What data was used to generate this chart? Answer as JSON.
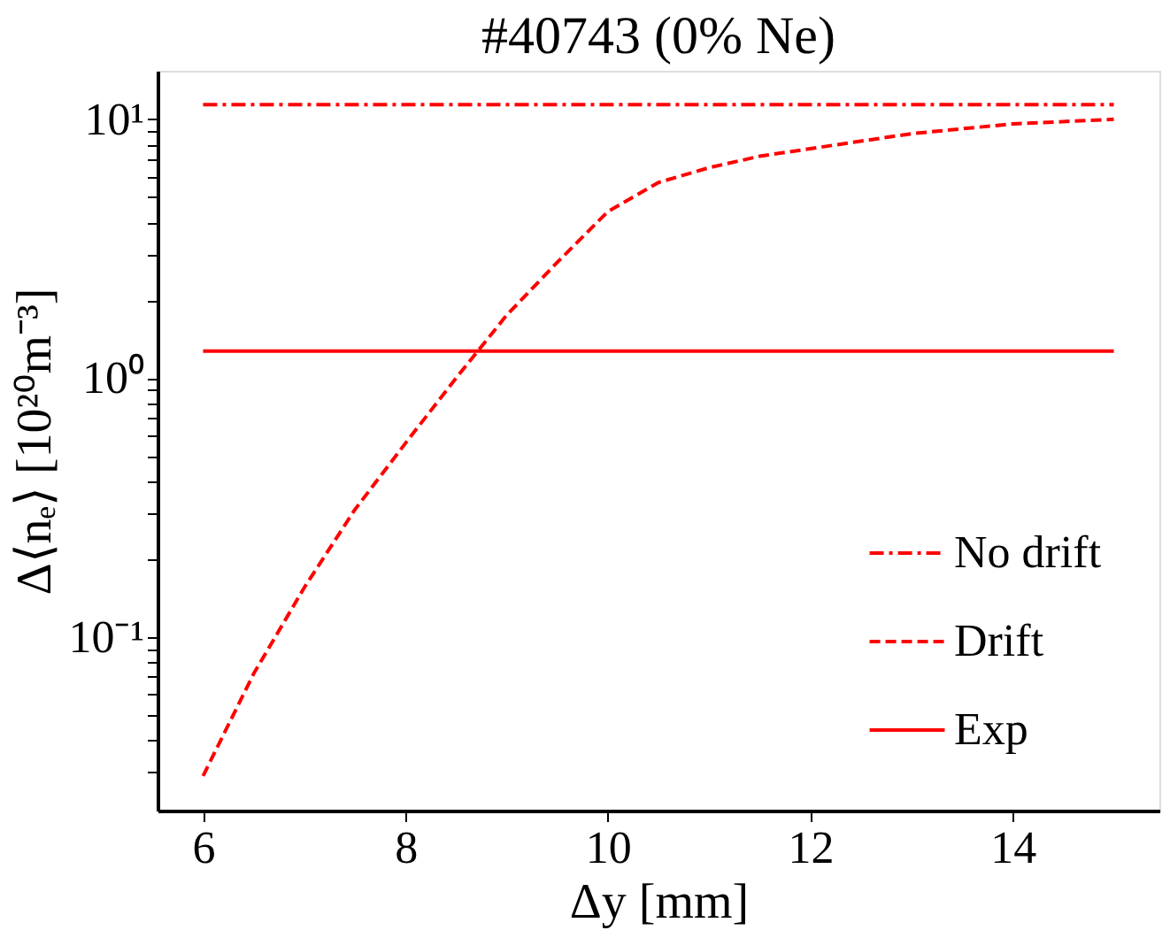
{
  "chart_data": {
    "type": "line",
    "title": "#40743 (0% Ne)",
    "xlabel": "Δy [mm]",
    "ylabel": "Δ⟨nₑ⟩ [10²⁰m⁻³]",
    "log": "y",
    "xlim": [
      5.55,
      15.45
    ],
    "ylim": [
      0.0213,
      15.4
    ],
    "xticks": [
      6,
      8,
      10,
      12,
      14
    ],
    "yticks": [
      {
        "value": 0.03,
        "label": null
      },
      {
        "value": 0.04,
        "label": null
      },
      {
        "value": 0.05,
        "label": null
      },
      {
        "value": 0.06,
        "label": null
      },
      {
        "value": 0.07,
        "label": null
      },
      {
        "value": 0.08,
        "label": null
      },
      {
        "value": 0.09,
        "label": null
      },
      {
        "value": 0.1,
        "label": "10⁻¹"
      },
      {
        "value": 0.2,
        "label": null
      },
      {
        "value": 0.3,
        "label": null
      },
      {
        "value": 0.4,
        "label": null
      },
      {
        "value": 0.5,
        "label": null
      },
      {
        "value": 0.6,
        "label": null
      },
      {
        "value": 0.7,
        "label": null
      },
      {
        "value": 0.8,
        "label": null
      },
      {
        "value": 0.9,
        "label": null
      },
      {
        "value": 1,
        "label": "10⁰"
      },
      {
        "value": 2,
        "label": null
      },
      {
        "value": 3,
        "label": null
      },
      {
        "value": 4,
        "label": null
      },
      {
        "value": 5,
        "label": null
      },
      {
        "value": 6,
        "label": null
      },
      {
        "value": 7,
        "label": null
      },
      {
        "value": 8,
        "label": null
      },
      {
        "value": 9,
        "label": null
      },
      {
        "value": 10,
        "label": "10¹"
      }
    ],
    "legend": "bottom right",
    "grid": false,
    "marker": "none",
    "series": [
      {
        "name": "No drift",
        "color": "#ff0000",
        "line_style": "dashdot",
        "x": [
          6,
          15
        ],
        "values": [
          11.4,
          11.4
        ]
      },
      {
        "name": "Drift",
        "color": "#ff0000",
        "line_style": "dashed",
        "x": [
          6,
          6.5,
          7,
          7.5,
          8,
          8.5,
          9,
          9.5,
          10,
          10.5,
          11,
          11.5,
          12,
          13,
          14,
          15
        ],
        "values": [
          0.029,
          0.072,
          0.155,
          0.31,
          0.56,
          1.0,
          1.75,
          2.8,
          4.4,
          5.7,
          6.5,
          7.2,
          7.7,
          8.8,
          9.6,
          10.0
        ]
      },
      {
        "name": "Exp",
        "color": "#ff0000",
        "line_style": "solid",
        "x": [
          6,
          15
        ],
        "values": [
          1.27,
          1.27
        ]
      }
    ]
  }
}
